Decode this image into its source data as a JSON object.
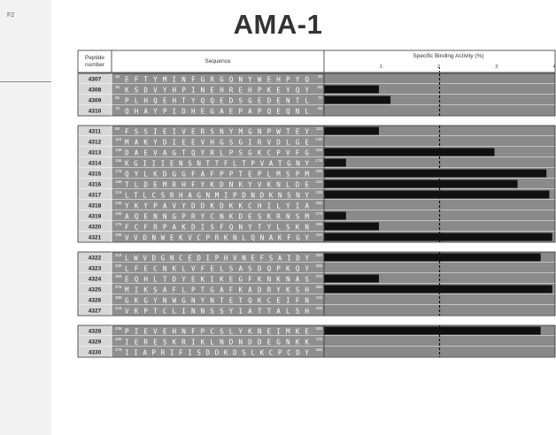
{
  "figure": {
    "side_label": "F2",
    "title": "AMA-1"
  },
  "chart_data": {
    "type": "bar",
    "orientation": "horizontal",
    "title": "AMA-1",
    "headers": {
      "peptide": "Peptide number",
      "sequence": "Sequence",
      "activity": "Specific Binding Activity (%)"
    },
    "x_ticks": [
      1,
      2,
      3,
      4
    ],
    "xlim": [
      0,
      4
    ],
    "threshold": 2,
    "groups": [
      {
        "rows": [
          {
            "peptide": "4307",
            "start": "16",
            "sequence": "EFTYMINFGRGQNYWEHPYQ",
            "end": "35",
            "value": 0.0
          },
          {
            "peptide": "4308",
            "start": "36",
            "sequence": "KSDVYHPINEHREHPKEYQY",
            "end": "55",
            "value": 0.95
          },
          {
            "peptide": "4309",
            "start": "56",
            "sequence": "PLHQEHTYQQEDSGEDENTL",
            "end": "75",
            "value": 1.15
          },
          {
            "peptide": "4310",
            "start": "76",
            "sequence": "QHAYPIDHEGAEPAPQEQNL",
            "end": "95",
            "value": 0.0
          }
        ]
      },
      {
        "rows": [
          {
            "peptide": "4311",
            "start": "96",
            "sequence": "FSSIEIVERSNYMGNPWTEY",
            "end": "115",
            "value": 0.95
          },
          {
            "peptide": "4312",
            "start": "116",
            "sequence": "MAKYDIEEVHGSGIRVDLGE",
            "end": "135",
            "value": 0.0
          },
          {
            "peptide": "4313",
            "start": "136",
            "sequence": "DAEVAGTQYRLPSGKCPVFG",
            "end": "155",
            "value": 2.95
          },
          {
            "peptide": "4314",
            "start": "156",
            "sequence": "KGIIIENSNTTFLTPVATGNY",
            "end": "175",
            "value": 0.38
          },
          {
            "peptide": "4315",
            "start": "176",
            "sequence": "QYLKDGGFAFPPTEPLMSPM",
            "end": "195",
            "value": 3.85
          },
          {
            "peptide": "4316",
            "start": "196",
            "sequence": "TLDEMRHFYKDNKYVKNLDE",
            "end": "215",
            "value": 3.35
          },
          {
            "peptide": "4317",
            "start": "216",
            "sequence": "LTLCSRHAGNMIPDNDKNSNY",
            "end": "235",
            "value": 3.9
          },
          {
            "peptide": "4318",
            "start": "236",
            "sequence": "YKYPAVYDDKDKKCHILYIA",
            "end": "255",
            "value": 0.0
          },
          {
            "peptide": "4319",
            "start": "256",
            "sequence": "AQENNGPRYCNKDESKRNSM",
            "end": "275",
            "value": 0.38
          },
          {
            "peptide": "4320",
            "start": "276",
            "sequence": "FCFRPAKDISFQNYTYLSKN",
            "end": "295",
            "value": 0.95
          },
          {
            "peptide": "4321",
            "start": "296",
            "sequence": "VVDNWEKVCPRKNLQNAKFGY",
            "end": "315",
            "value": 3.95
          }
        ]
      },
      {
        "rows": [
          {
            "peptide": "4322",
            "start": "316",
            "sequence": "LWVDGNCEDIPHVNEFSAIDY",
            "end": "335",
            "value": 3.75
          },
          {
            "peptide": "4323",
            "start": "336",
            "sequence": "LFECNKLVFELSASDQPKQY",
            "end": "355",
            "value": 0.0
          },
          {
            "peptide": "4324",
            "start": "356",
            "sequence": "EQHLTDYEKIKEGFKNKNAS",
            "end": "375",
            "value": 0.95
          },
          {
            "peptide": "4325",
            "start": "376",
            "sequence": "MIKSAFLPTGAFKADRYKSH",
            "end": "395",
            "value": 3.95
          },
          {
            "peptide": "4326",
            "start": "396",
            "sequence": "GKGYNWGNYNTETQKCEIFN",
            "end": "415",
            "value": 0.0
          },
          {
            "peptide": "4327",
            "start": "416",
            "sequence": "VKPTCLINNSSYIATTALSH",
            "end": "435",
            "value": 0.0
          }
        ]
      },
      {
        "rows": [
          {
            "peptide": "4328",
            "start": "436",
            "sequence": "PIEVEHNFPCSLYKNEIMKE",
            "end": "455",
            "value": 3.75
          },
          {
            "peptide": "4329",
            "start": "456",
            "sequence": "IERESKRIKLNDNDDEGNKK",
            "end": "475",
            "value": 0.0
          },
          {
            "peptide": "4330",
            "start": "476",
            "sequence": "IIAPRIFISDDKDSLKCPCDY",
            "end": "495",
            "value": 0.0
          }
        ]
      }
    ]
  }
}
